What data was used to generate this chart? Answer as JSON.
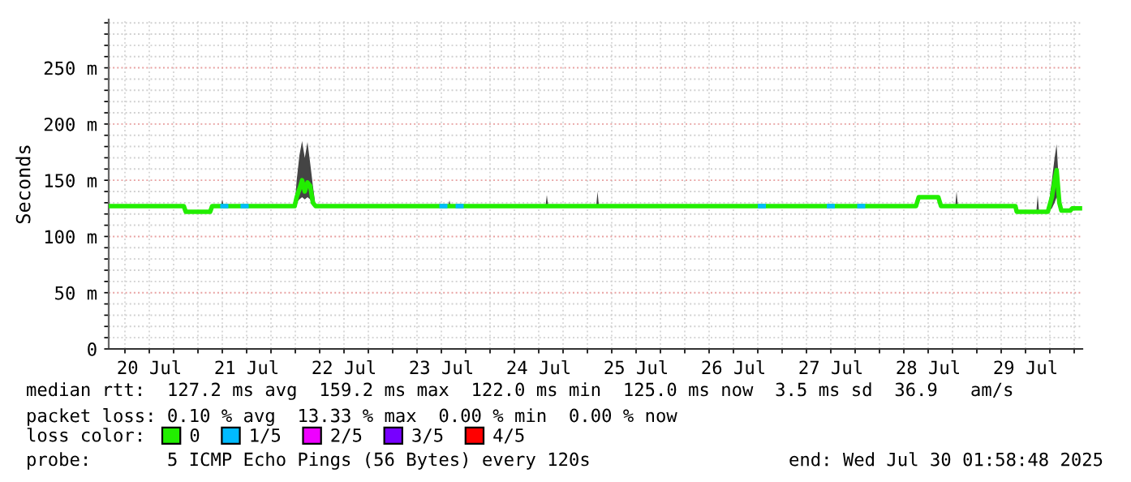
{
  "chart_data": {
    "type": "line",
    "ylabel": "Seconds",
    "legend_title": "loss color:",
    "legend": "bottom",
    "grid": true,
    "line_style": "solid",
    "marker": "none",
    "annotations": [
      "median rtt:  127.2 ms avg  159.2 ms max  122.0 ms min  125.0 ms now  3.5 ms sd  36.9   am/s",
      "packet loss: 0.10 % avg  13.33 % max  0.00 % min  0.00 % now",
      "probe:       5 ICMP Echo Pings (56 Bytes) every 120s",
      "end: Wed Jul 30 01:58:48 2025"
    ],
    "xlim": [
      "2025-07-20T02:00",
      "2025-07-30T02:00"
    ],
    "ylim": [
      0,
      293
    ],
    "xticks": [
      {
        "value": "2025-07-20T06:00",
        "label": null
      },
      {
        "value": "2025-07-20T12:00",
        "label": "20 Jul"
      },
      {
        "value": "2025-07-20T18:00",
        "label": null
      },
      {
        "value": "2025-07-21T00:00",
        "label": null
      },
      {
        "value": "2025-07-21T06:00",
        "label": null
      },
      {
        "value": "2025-07-21T12:00",
        "label": "21 Jul"
      },
      {
        "value": "2025-07-21T18:00",
        "label": null
      },
      {
        "value": "2025-07-22T00:00",
        "label": null
      },
      {
        "value": "2025-07-22T06:00",
        "label": null
      },
      {
        "value": "2025-07-22T12:00",
        "label": "22 Jul"
      },
      {
        "value": "2025-07-22T18:00",
        "label": null
      },
      {
        "value": "2025-07-23T00:00",
        "label": null
      },
      {
        "value": "2025-07-23T06:00",
        "label": null
      },
      {
        "value": "2025-07-23T12:00",
        "label": "23 Jul"
      },
      {
        "value": "2025-07-23T18:00",
        "label": null
      },
      {
        "value": "2025-07-24T00:00",
        "label": null
      },
      {
        "value": "2025-07-24T06:00",
        "label": null
      },
      {
        "value": "2025-07-24T12:00",
        "label": "24 Jul"
      },
      {
        "value": "2025-07-24T18:00",
        "label": null
      },
      {
        "value": "2025-07-25T00:00",
        "label": null
      },
      {
        "value": "2025-07-25T06:00",
        "label": null
      },
      {
        "value": "2025-07-25T12:00",
        "label": "25 Jul"
      },
      {
        "value": "2025-07-25T18:00",
        "label": null
      },
      {
        "value": "2025-07-26T00:00",
        "label": null
      },
      {
        "value": "2025-07-26T06:00",
        "label": null
      },
      {
        "value": "2025-07-26T12:00",
        "label": "26 Jul"
      },
      {
        "value": "2025-07-26T18:00",
        "label": null
      },
      {
        "value": "2025-07-27T00:00",
        "label": null
      },
      {
        "value": "2025-07-27T06:00",
        "label": null
      },
      {
        "value": "2025-07-27T12:00",
        "label": "27 Jul"
      },
      {
        "value": "2025-07-27T18:00",
        "label": null
      },
      {
        "value": "2025-07-28T00:00",
        "label": null
      },
      {
        "value": "2025-07-28T06:00",
        "label": null
      },
      {
        "value": "2025-07-28T12:00",
        "label": "28 Jul"
      },
      {
        "value": "2025-07-28T18:00",
        "label": null
      },
      {
        "value": "2025-07-29T00:00",
        "label": null
      },
      {
        "value": "2025-07-29T06:00",
        "label": null
      },
      {
        "value": "2025-07-29T12:00",
        "label": "29 Jul"
      },
      {
        "value": "2025-07-29T18:00",
        "label": null
      },
      {
        "value": "2025-07-30T00:00",
        "label": null
      }
    ],
    "yticks": [
      0,
      {
        "value": 10,
        "label": null
      },
      {
        "value": 20,
        "label": null
      },
      {
        "value": 30,
        "label": null
      },
      {
        "value": 40,
        "label": null
      },
      {
        "value": 50,
        "label": "50 m"
      },
      {
        "value": 60,
        "label": null
      },
      {
        "value": 70,
        "label": null
      },
      {
        "value": 80,
        "label": null
      },
      {
        "value": 90,
        "label": null
      },
      {
        "value": 100,
        "label": "100 m"
      },
      {
        "value": 110,
        "label": null
      },
      {
        "value": 120,
        "label": null
      },
      {
        "value": 130,
        "label": null
      },
      {
        "value": 140,
        "label": null
      },
      {
        "value": 150,
        "label": "150 m"
      },
      {
        "value": 160,
        "label": null
      },
      {
        "value": 170,
        "label": null
      },
      {
        "value": 180,
        "label": null
      },
      {
        "value": 190,
        "label": null
      },
      {
        "value": 200,
        "label": "200 m"
      },
      {
        "value": 210,
        "label": null
      },
      {
        "value": 220,
        "label": null
      },
      {
        "value": 230,
        "label": null
      },
      {
        "value": 240,
        "label": null
      },
      {
        "value": 250,
        "label": "250 m"
      },
      {
        "value": 260,
        "label": null
      },
      {
        "value": 270,
        "label": null
      },
      {
        "value": 280,
        "label": null
      },
      {
        "value": 290,
        "label": null
      }
    ],
    "series": [
      {
        "name": "0",
        "color": "#22ee00",
        "x": [
          "2025-07-20T02:00",
          "2025-07-20T20:30",
          "2025-07-20T21:00",
          "2025-07-21T03:00",
          "2025-07-21T03:30",
          "2025-07-21T05:40",
          "2025-07-21T06:00",
          "2025-07-21T06:20",
          "2025-07-21T23:50",
          "2025-07-22T00:20",
          "2025-07-22T01:00",
          "2025-07-22T01:40",
          "2025-07-22T02:20",
          "2025-07-22T03:00",
          "2025-07-22T03:40",
          "2025-07-22T04:20",
          "2025-07-22T05:00",
          "2025-07-23T13:40",
          "2025-07-23T14:00",
          "2025-07-23T14:20",
          "2025-07-24T13:40",
          "2025-07-24T14:00",
          "2025-07-24T14:20",
          "2025-07-25T02:10",
          "2025-07-25T02:30",
          "2025-07-25T02:50",
          "2025-07-28T09:00",
          "2025-07-28T09:40",
          "2025-07-28T14:30",
          "2025-07-28T15:10",
          "2025-07-28T18:40",
          "2025-07-28T19:00",
          "2025-07-28T19:20",
          "2025-07-29T09:30",
          "2025-07-29T09:50",
          "2025-07-29T14:40",
          "2025-07-29T15:00",
          "2025-07-29T15:20",
          "2025-07-29T17:30",
          "2025-07-29T18:30",
          "2025-07-29T19:10",
          "2025-07-29T19:40",
          "2025-07-29T20:20",
          "2025-07-29T20:50",
          "2025-07-29T23:00",
          "2025-07-29T23:30",
          "2025-07-30T01:58"
        ],
        "values": [
          127,
          127,
          122,
          122,
          127,
          127,
          127,
          127,
          127,
          135,
          142,
          150,
          140,
          148,
          145,
          130,
          127,
          127,
          127,
          127,
          127,
          127,
          127,
          127,
          127,
          127,
          127,
          135,
          135,
          127,
          127,
          127,
          127,
          127,
          122,
          122,
          122,
          122,
          122,
          135,
          150,
          159,
          130,
          123,
          123,
          125,
          125
        ],
        "lower": [
          127,
          127,
          122,
          122,
          127,
          127,
          127,
          127,
          127,
          130,
          133,
          135,
          133,
          135,
          133,
          127,
          127,
          127,
          127,
          127,
          127,
          127,
          127,
          127,
          127,
          127,
          127,
          135,
          135,
          127,
          127,
          127,
          127,
          127,
          122,
          122,
          122,
          122,
          122,
          125,
          130,
          135,
          125,
          123,
          123,
          125,
          125
        ],
        "upper": [
          127,
          127,
          122,
          122,
          127,
          127,
          133,
          127,
          127,
          150,
          172,
          185,
          170,
          184,
          165,
          145,
          127,
          127,
          132,
          127,
          127,
          137,
          127,
          127,
          140,
          127,
          127,
          135,
          135,
          127,
          127,
          140,
          127,
          127,
          122,
          122,
          137,
          122,
          122,
          150,
          170,
          182,
          140,
          123,
          123,
          125,
          125
        ]
      },
      {
        "name": "1/5",
        "color": "#00bbff",
        "x": [
          "2025-07-21T05:30",
          "2025-07-21T07:30",
          "2025-07-21T08:00",
          "2025-07-21T10:30",
          "2025-07-21T12:30",
          "2025-07-21T13:00",
          "2025-07-23T11:30",
          "2025-07-23T13:30",
          "2025-07-23T14:00",
          "2025-07-23T15:30",
          "2025-07-23T17:30",
          "2025-07-23T18:00",
          "2025-07-26T18:00",
          "2025-07-26T20:00",
          "2025-07-26T20:30",
          "2025-07-27T11:00",
          "2025-07-27T13:00",
          "2025-07-27T13:30",
          "2025-07-27T18:30",
          "2025-07-27T20:30"
        ],
        "values": [
          127,
          127,
          null,
          127,
          127,
          null,
          127,
          127,
          null,
          127,
          127,
          null,
          127,
          127,
          null,
          127,
          127,
          null,
          127,
          127
        ]
      },
      {
        "name": "2/5",
        "color": "#ee00ff"
      },
      {
        "name": "3/5",
        "color": "#7700ff"
      },
      {
        "name": "4/5",
        "color": "#ff0000"
      }
    ]
  }
}
